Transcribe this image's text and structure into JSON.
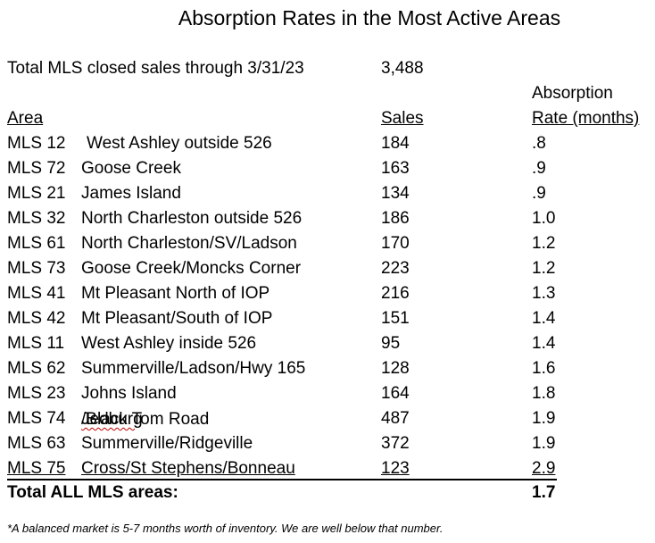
{
  "title": "Absorption Rates in the Most Active Areas",
  "total_closed": {
    "label": "Total MLS closed sales through 3/31/23",
    "value": "3,488"
  },
  "headers": {
    "area": "Area",
    "sales": "Sales",
    "rate_line1": "Absorption",
    "rate_line2": "Rate (months)"
  },
  "rows": [
    {
      "code": "MLS 12",
      "name": "West Ashley outside 526",
      "sales": "184",
      "rate": ".8"
    },
    {
      "code": "MLS 72",
      "name": "Goose Creek",
      "sales": "163",
      "rate": ".9"
    },
    {
      "code": "MLS 21",
      "name": "James Island",
      "sales": "134",
      "rate": ".9"
    },
    {
      "code": "MLS 32",
      "name": "North Charleston outside 526",
      "sales": "186",
      "rate": "1.0"
    },
    {
      "code": "MLS 61",
      "name": "North Charleston/SV/Ladson",
      "sales": "170",
      "rate": "1.2"
    },
    {
      "code": "MLS 73",
      "name": "Goose Creek/Moncks Corner",
      "sales": "223",
      "rate": "1.2"
    },
    {
      "code": "MLS 41",
      "name": "Mt Pleasant North of IOP",
      "sales": "216",
      "rate": "1.3"
    },
    {
      "code": "MLS 42",
      "name": "Mt Pleasant/South of IOP",
      "sales": "151",
      "rate": "1.4"
    },
    {
      "code": "MLS 11",
      "name": "West Ashley inside 526",
      "sales": "95",
      "rate": "1.4"
    },
    {
      "code": "MLS 62",
      "name": "Summerville/Ladson/Hwy 165",
      "sales": "128",
      "rate": "1.6"
    },
    {
      "code": "MLS 23",
      "name": "Johns Island",
      "sales": "164",
      "rate": "1.8"
    },
    {
      "code": "MLS 74",
      "name_part1": "Jedburg",
      "name_part2": "/Black Tom Road",
      "sales": "487",
      "rate": "1.9"
    },
    {
      "code": "MLS 63",
      "name": "Summerville/Ridgeville",
      "sales": "372",
      "rate": "1.9"
    },
    {
      "code": "MLS 75",
      "name": "Cross/St Stephens/Bonneau",
      "sales": "123",
      "rate": "2.9"
    }
  ],
  "grand_total": {
    "label": "Total ALL MLS areas:",
    "rate": "1.7"
  },
  "footnote": "*A balanced market is 5-7 months worth of inventory. We are well below that number."
}
